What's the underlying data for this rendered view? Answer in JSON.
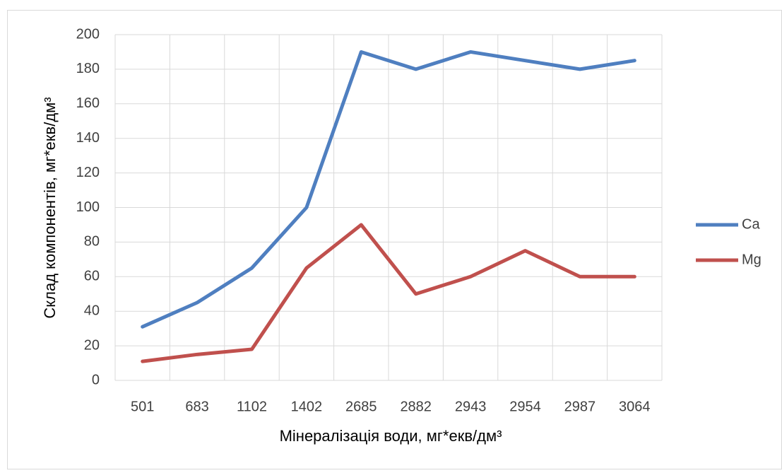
{
  "chart_data": {
    "type": "line",
    "xlabel": "Мінералізація води, мг*екв/дм³",
    "ylabel": "Склад компонентів, мг*екв/дм³",
    "categories": [
      "501",
      "683",
      "1102",
      "1402",
      "2685",
      "2882",
      "2943",
      "2954",
      "2987",
      "3064"
    ],
    "series": [
      {
        "name": "Ca",
        "color": "#4f7fc0",
        "values": [
          31,
          45,
          65,
          100,
          190,
          180,
          190,
          185,
          180,
          185
        ]
      },
      {
        "name": "Mg",
        "color": "#c0504d",
        "values": [
          11,
          15,
          18,
          65,
          90,
          50,
          60,
          75,
          60,
          60
        ]
      }
    ],
    "ylim": [
      0,
      200
    ],
    "yticks": [
      0,
      20,
      40,
      60,
      80,
      100,
      120,
      140,
      160,
      180,
      200
    ],
    "grid": true,
    "legend": "right"
  }
}
